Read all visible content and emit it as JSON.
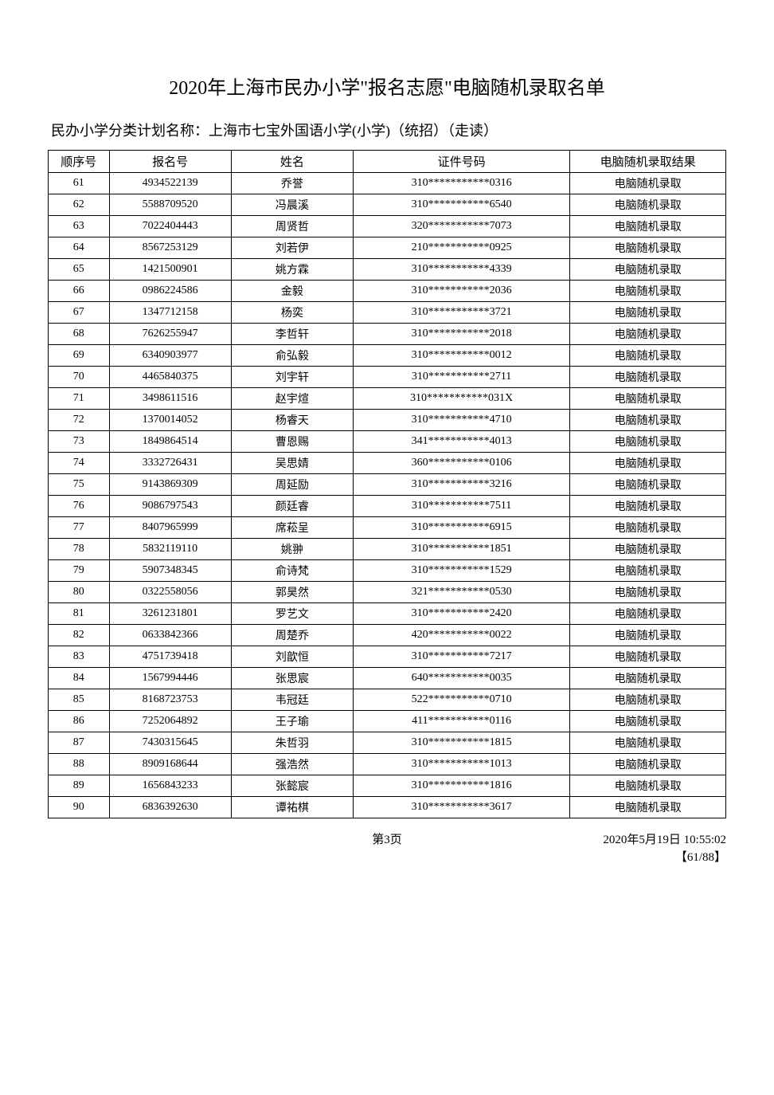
{
  "title": "2020年上海市民办小学\"报名志愿\"电脑随机录取名单",
  "subtitle": "民办小学分类计划名称：上海市七宝外国语小学(小学)（统招）（走读）",
  "columns": [
    "顺序号",
    "报名号",
    "姓名",
    "证件号码",
    "电脑随机录取结果"
  ],
  "result_text": "电脑随机录取",
  "rows": [
    {
      "seq": "61",
      "reg": "4934522139",
      "name": "乔誉",
      "id": "310***********0316"
    },
    {
      "seq": "62",
      "reg": "5588709520",
      "name": "冯晨溪",
      "id": "310***********6540"
    },
    {
      "seq": "63",
      "reg": "7022404443",
      "name": "周贤哲",
      "id": "320***********7073"
    },
    {
      "seq": "64",
      "reg": "8567253129",
      "name": "刘若伊",
      "id": "210***********0925"
    },
    {
      "seq": "65",
      "reg": "1421500901",
      "name": "姚方霖",
      "id": "310***********4339"
    },
    {
      "seq": "66",
      "reg": "0986224586",
      "name": "金毅",
      "id": "310***********2036"
    },
    {
      "seq": "67",
      "reg": "1347712158",
      "name": "杨奕",
      "id": "310***********3721"
    },
    {
      "seq": "68",
      "reg": "7626255947",
      "name": "李哲轩",
      "id": "310***********2018"
    },
    {
      "seq": "69",
      "reg": "6340903977",
      "name": "俞弘毅",
      "id": "310***********0012"
    },
    {
      "seq": "70",
      "reg": "4465840375",
      "name": "刘宇轩",
      "id": "310***********2711"
    },
    {
      "seq": "71",
      "reg": "3498611516",
      "name": "赵宇煊",
      "id": "310***********031X"
    },
    {
      "seq": "72",
      "reg": "1370014052",
      "name": "杨睿天",
      "id": "310***********4710"
    },
    {
      "seq": "73",
      "reg": "1849864514",
      "name": "曹恩赐",
      "id": "341***********4013"
    },
    {
      "seq": "74",
      "reg": "3332726431",
      "name": "吴思婧",
      "id": "360***********0106"
    },
    {
      "seq": "75",
      "reg": "9143869309",
      "name": "周延励",
      "id": "310***********3216"
    },
    {
      "seq": "76",
      "reg": "9086797543",
      "name": "颜廷睿",
      "id": "310***********7511"
    },
    {
      "seq": "77",
      "reg": "8407965999",
      "name": "席菘呈",
      "id": "310***********6915"
    },
    {
      "seq": "78",
      "reg": "5832119110",
      "name": "姚翀",
      "id": "310***********1851"
    },
    {
      "seq": "79",
      "reg": "5907348345",
      "name": "俞诗梵",
      "id": "310***********1529"
    },
    {
      "seq": "80",
      "reg": "0322558056",
      "name": "郭昊然",
      "id": "321***********0530"
    },
    {
      "seq": "81",
      "reg": "3261231801",
      "name": "罗艺文",
      "id": "310***********2420"
    },
    {
      "seq": "82",
      "reg": "0633842366",
      "name": "周楚乔",
      "id": "420***********0022"
    },
    {
      "seq": "83",
      "reg": "4751739418",
      "name": "刘歆恒",
      "id": "310***********7217"
    },
    {
      "seq": "84",
      "reg": "1567994446",
      "name": "张思宸",
      "id": "640***********0035"
    },
    {
      "seq": "85",
      "reg": "8168723753",
      "name": "韦冠廷",
      "id": "522***********0710"
    },
    {
      "seq": "86",
      "reg": "7252064892",
      "name": "王子瑜",
      "id": "411***********0116"
    },
    {
      "seq": "87",
      "reg": "7430315645",
      "name": "朱哲羽",
      "id": "310***********1815"
    },
    {
      "seq": "88",
      "reg": "8909168644",
      "name": "强浩然",
      "id": "310***********1013"
    },
    {
      "seq": "89",
      "reg": "1656843233",
      "name": "张懿宸",
      "id": "310***********1816"
    },
    {
      "seq": "90",
      "reg": "6836392630",
      "name": "谭祐棋",
      "id": "310***********3617"
    }
  ],
  "page_label": "第3页",
  "timestamp": "2020年5月19日 10:55:02",
  "counter": "【61/88】"
}
